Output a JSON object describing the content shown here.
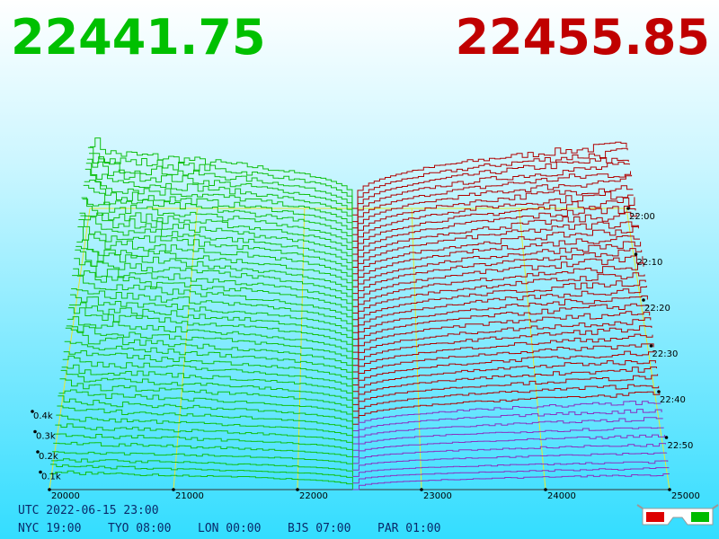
{
  "header": {
    "bid": "22441.75",
    "ask": "22455.85"
  },
  "x_axis": {
    "labels": [
      "20000",
      "21000",
      "22000",
      "23000",
      "24000",
      "25000"
    ]
  },
  "depth_axis": {
    "labels": [
      "0.4k",
      "0.3k",
      "0.2k",
      "0.1k"
    ]
  },
  "time_axis": {
    "labels": [
      "22:00",
      "22:10",
      "22:20",
      "22:30",
      "22:40",
      "22:50"
    ]
  },
  "footer": {
    "utc": "UTC 2022-06-15 23:00",
    "zones": [
      "NYC 19:00",
      "TYO 08:00",
      "LON 00:00",
      "BJS 07:00",
      "PAR 01:00"
    ]
  }
}
